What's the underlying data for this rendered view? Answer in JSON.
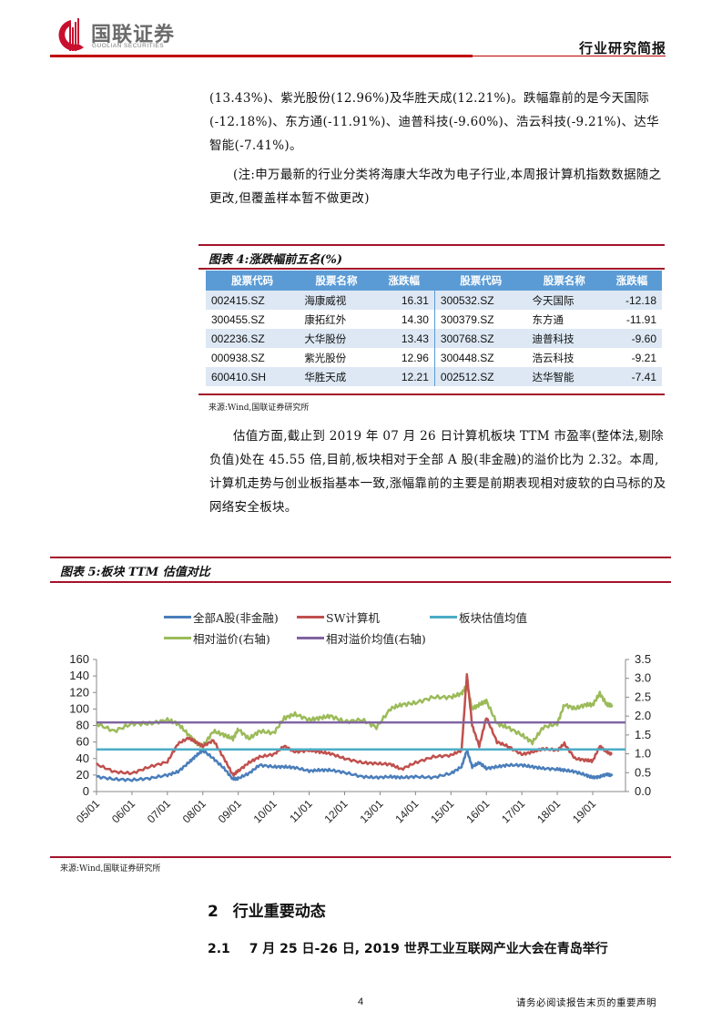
{
  "header": {
    "logo_cn": "国联证券",
    "logo_en": "GUOLIAN SECURITIES",
    "report_type": "行业研究简报",
    "brand_color": "#c00000"
  },
  "paragraphs": {
    "p1": "(13.43%)、紫光股份(12.96%)及华胜天成(12.21%)。跌幅靠前的是今天国际(-12.18%)、东方通(-11.91%)、迪普科技(-9.60%)、浩云科技(-9.21%)、达华智能(-7.41%)。",
    "p2": "(注:申万最新的行业分类将海康大华改为电子行业,本周报计算机指数数据随之更改,但覆盖样本暂不做更改)",
    "p3": "估值方面,截止到 2019 年 07 月 26 日计算机板块 TTM 市盈率(整体法,剔除负值)处在 45.55 倍,目前,板块相对于全部 A 股(非金融)的溢价比为 2.32。本周,计算机走势与创业板指基本一致,涨幅靠前的主要是前期表现相对疲软的白马标的及网络安全板块。"
  },
  "figure4": {
    "title": "图表 4:涨跌幅前五名(%)",
    "headers": [
      "股票代码",
      "股票名称",
      "涨跌幅",
      "股票代码",
      "股票名称",
      "涨跌幅"
    ],
    "rows": [
      [
        "002415.SZ",
        "海康威视",
        "16.31",
        "300532.SZ",
        "今天国际",
        "-12.18"
      ],
      [
        "300455.SZ",
        "康拓红外",
        "14.30",
        "300379.SZ",
        "东方通",
        "-11.91"
      ],
      [
        "002236.SZ",
        "大华股份",
        "13.43",
        "300768.SZ",
        "迪普科技",
        "-9.60"
      ],
      [
        "000938.SZ",
        "紫光股份",
        "12.96",
        "300448.SZ",
        "浩云科技",
        "-9.21"
      ],
      [
        "600410.SH",
        "华胜天成",
        "12.21",
        "002512.SZ",
        "达华智能",
        "-7.41"
      ]
    ],
    "source": "来源:Wind,国联证券研究所",
    "header_color": "#5b9bd5",
    "alt_row_color": "#dde8f4"
  },
  "figure5": {
    "title": "图表 5:板块 TTM 估值对比",
    "source": "来源:Wind,国联证券研究所"
  },
  "chart_data": {
    "type": "line",
    "title": "板块 TTM 估值对比",
    "xlabel": "",
    "ylabel": "",
    "x_ticks": [
      "05/01",
      "06/01",
      "07/01",
      "08/01",
      "09/01",
      "10/01",
      "11/01",
      "12/01",
      "13/01",
      "14/01",
      "15/01",
      "16/01",
      "17/01",
      "18/01",
      "19/01"
    ],
    "y_left_ticks": [
      0,
      20,
      40,
      60,
      80,
      100,
      120,
      140,
      160
    ],
    "y_right_ticks": [
      "0.0",
      "0.5",
      "1.0",
      "1.5",
      "2.0",
      "2.5",
      "3.0",
      "3.5"
    ],
    "ylim_left": [
      0,
      160
    ],
    "ylim_right": [
      0,
      3.5
    ],
    "grid": false,
    "legend_position": "top",
    "x": [
      2005.0,
      2005.5,
      2006.0,
      2006.5,
      2007.0,
      2007.3,
      2007.6,
      2007.8,
      2008.0,
      2008.3,
      2008.6,
      2008.85,
      2009.0,
      2009.3,
      2009.6,
      2010.0,
      2010.3,
      2010.6,
      2011.0,
      2011.3,
      2011.6,
      2012.0,
      2012.5,
      2012.9,
      2013.3,
      2013.6,
      2014.0,
      2014.5,
      2015.0,
      2015.3,
      2015.45,
      2015.6,
      2015.8,
      2016.0,
      2016.3,
      2016.6,
      2017.0,
      2017.3,
      2017.6,
      2018.0,
      2018.2,
      2018.5,
      2018.8,
      2019.0,
      2019.2,
      2019.4,
      2019.55
    ],
    "series": [
      {
        "name": "全部A股(非金融)",
        "axis": "left",
        "color": "#4a7ebb",
        "values": [
          18,
          15,
          14,
          16,
          20,
          24,
          35,
          43,
          50,
          40,
          28,
          15,
          16,
          22,
          32,
          30,
          30,
          29,
          25,
          26,
          26,
          23,
          18,
          17,
          18,
          17,
          18,
          17,
          22,
          30,
          50,
          30,
          35,
          28,
          30,
          32,
          32,
          30,
          28,
          27,
          26,
          24,
          20,
          17,
          18,
          21,
          19
        ]
      },
      {
        "name": "SW计算机",
        "axis": "left",
        "color": "#c0504d",
        "values": [
          33,
          24,
          22,
          30,
          36,
          58,
          65,
          60,
          55,
          62,
          40,
          20,
          25,
          35,
          42,
          45,
          55,
          48,
          50,
          48,
          46,
          40,
          35,
          34,
          33,
          27,
          35,
          42,
          44,
          50,
          142,
          80,
          55,
          90,
          60,
          55,
          45,
          48,
          52,
          50,
          58,
          40,
          38,
          37,
          55,
          48,
          45
        ]
      },
      {
        "name": "板块估值均值",
        "axis": "left",
        "color": "#4bacc6",
        "constant": 51
      },
      {
        "name": "相对溢价(右轴)",
        "axis": "right",
        "color": "#9bbb59",
        "values": [
          1.8,
          1.6,
          1.8,
          1.8,
          1.9,
          1.8,
          1.5,
          1.3,
          1.2,
          1.6,
          1.5,
          1.4,
          1.65,
          1.4,
          1.6,
          1.55,
          1.95,
          2.05,
          1.9,
          1.95,
          2.0,
          1.85,
          1.9,
          1.7,
          2.2,
          2.3,
          2.35,
          2.5,
          2.5,
          2.6,
          2.8,
          2.2,
          2.3,
          2.4,
          1.8,
          1.7,
          1.5,
          1.3,
          1.7,
          1.8,
          2.3,
          2.2,
          2.3,
          2.3,
          2.6,
          2.3,
          2.3
        ]
      },
      {
        "name": "相对溢价均值(右轴)",
        "axis": "right",
        "color": "#8064a2",
        "constant": 1.83
      }
    ]
  },
  "section": {
    "h1_num": "2",
    "h1_text": "行业重要动态",
    "h2_num": "2.1",
    "h2_text": "7 月 25 日-26 日, 2019 世界工业互联网产业大会在青岛举行"
  },
  "footer": {
    "page_number": "4",
    "disclaimer": "请务必阅读报告末页的重要声明"
  }
}
